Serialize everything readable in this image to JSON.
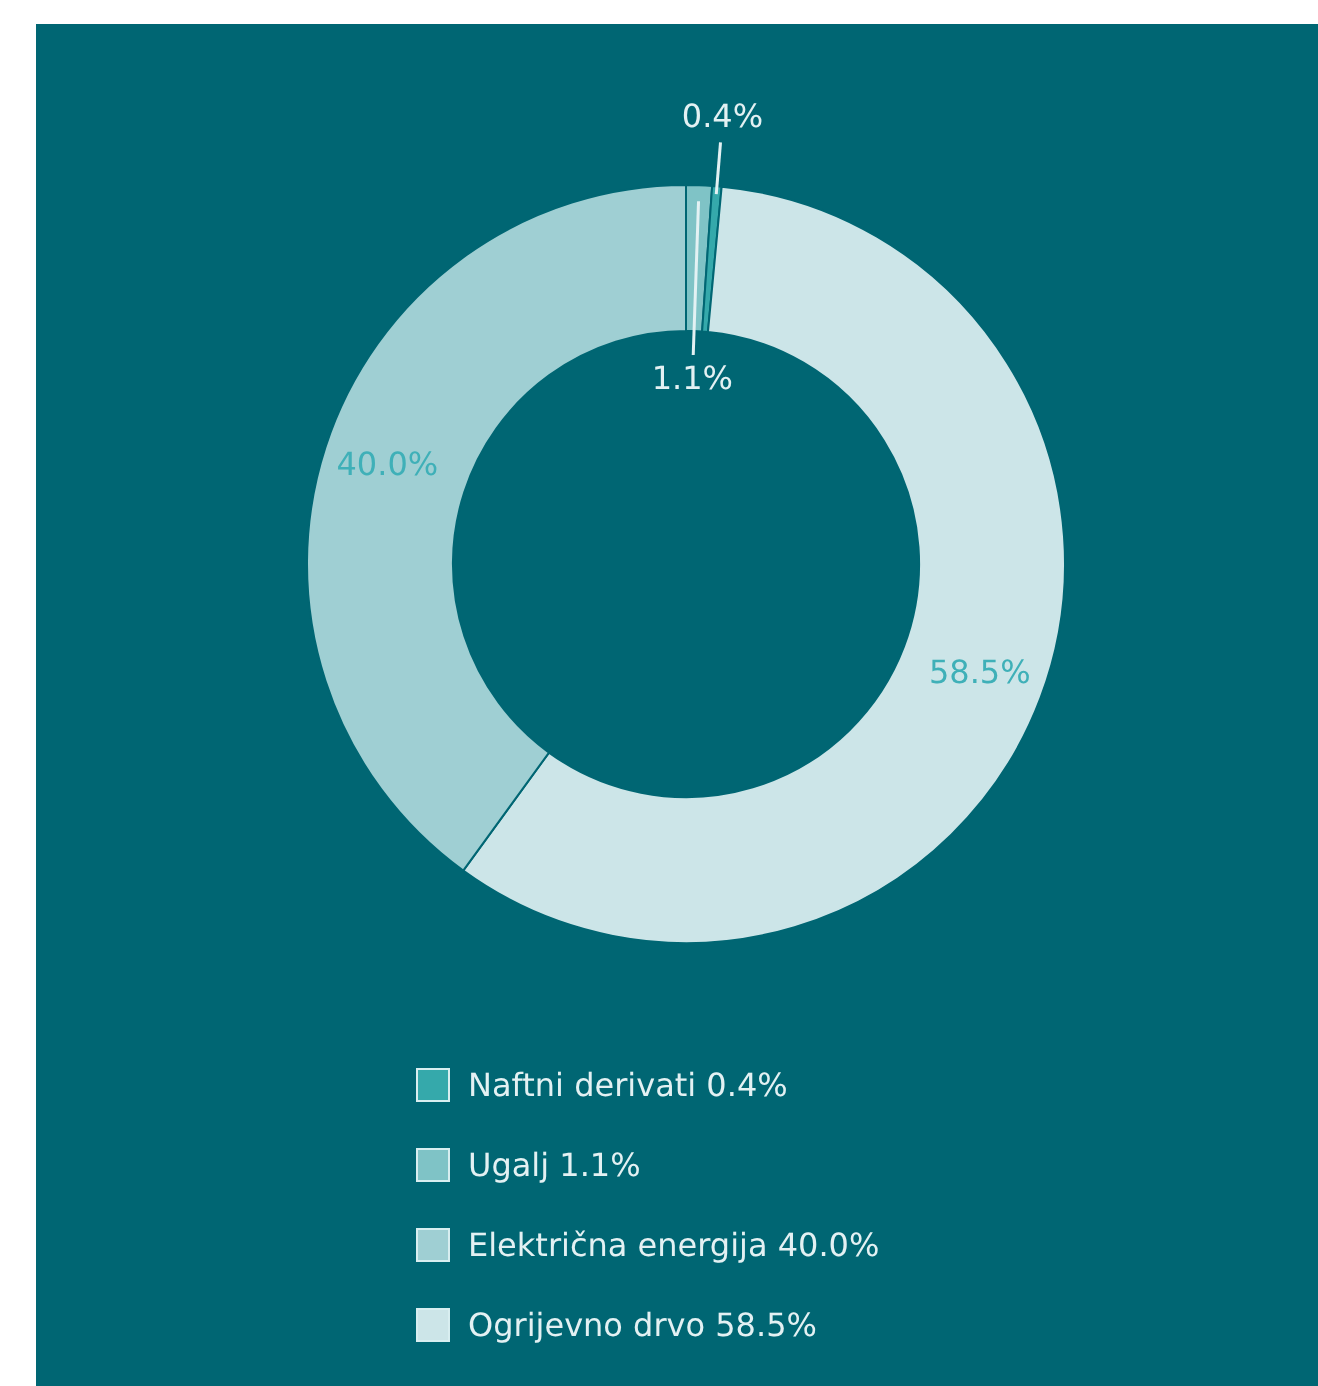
{
  "chart_data": {
    "type": "donut",
    "categories": [
      "Ugalj",
      "Naftni derivati",
      "Ogrijevno drvo",
      "Električna energija"
    ],
    "values": [
      1.1,
      0.4,
      58.5,
      40.0
    ],
    "colors": [
      "#7fc3c6",
      "#35a9ab",
      "#cce5e8",
      "#9fcfd3"
    ],
    "value_labels": [
      "1.1%",
      "0.4%",
      "58.5%",
      "40.0%"
    ],
    "legend": "bottom"
  }
}
